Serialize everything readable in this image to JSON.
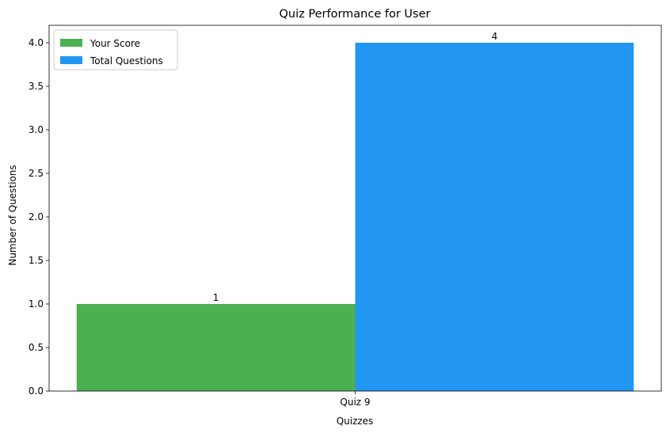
{
  "chart_data": {
    "type": "bar",
    "title": "Quiz Performance for User",
    "xlabel": "Quizzes",
    "ylabel": "Number of Questions",
    "categories": [
      "Quiz 9"
    ],
    "series": [
      {
        "name": "Your Score",
        "values": [
          1
        ],
        "color": "#4caf50"
      },
      {
        "name": "Total Questions",
        "values": [
          4
        ],
        "color": "#2196f3"
      }
    ],
    "ylim": [
      0,
      4.2
    ],
    "yticks": [
      "0.0",
      "0.5",
      "1.0",
      "1.5",
      "2.0",
      "2.5",
      "3.0",
      "3.5",
      "4.0"
    ],
    "data_labels": [
      "1",
      "4"
    ],
    "legend_position": "top-left",
    "grid": false
  }
}
